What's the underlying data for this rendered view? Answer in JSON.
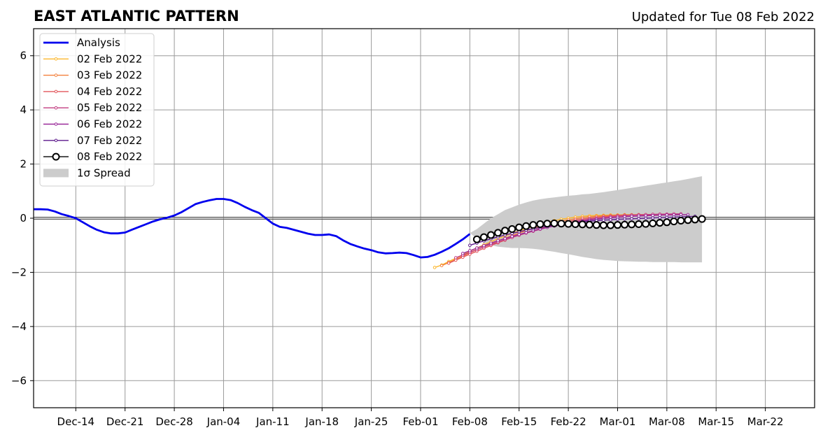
{
  "chart_data": {
    "type": "line",
    "title": "EAST ATLANTIC PATTERN",
    "subtitle": "Updated for Tue 08 Feb 2022",
    "xlabel": "",
    "ylabel": "",
    "x_range": [
      "2021-12-08",
      "2022-03-29"
    ],
    "ylim": [
      -7,
      7
    ],
    "grid": true,
    "legend_position": "top-left",
    "zero_line": true,
    "x_ticks": [
      {
        "date": "2021-12-14",
        "label": "Dec-14"
      },
      {
        "date": "2021-12-21",
        "label": "Dec-21"
      },
      {
        "date": "2021-12-28",
        "label": "Dec-28"
      },
      {
        "date": "2022-01-04",
        "label": "Jan-04"
      },
      {
        "date": "2022-01-11",
        "label": "Jan-11"
      },
      {
        "date": "2022-01-18",
        "label": "Jan-18"
      },
      {
        "date": "2022-01-25",
        "label": "Jan-25"
      },
      {
        "date": "2022-02-01",
        "label": "Feb-01"
      },
      {
        "date": "2022-02-08",
        "label": "Feb-08"
      },
      {
        "date": "2022-02-15",
        "label": "Feb-15"
      },
      {
        "date": "2022-02-22",
        "label": "Feb-22"
      },
      {
        "date": "2022-03-01",
        "label": "Mar-01"
      },
      {
        "date": "2022-03-08",
        "label": "Mar-08"
      },
      {
        "date": "2022-03-15",
        "label": "Mar-15"
      },
      {
        "date": "2022-03-22",
        "label": "Mar-22"
      }
    ],
    "y_ticks": [
      {
        "value": 6,
        "label": "6"
      },
      {
        "value": 4,
        "label": "4"
      },
      {
        "value": 2,
        "label": "2"
      },
      {
        "value": 0,
        "label": "0"
      },
      {
        "value": -2,
        "label": "−2"
      },
      {
        "value": -4,
        "label": "−4"
      },
      {
        "value": -6,
        "label": "−6"
      }
    ],
    "analysis": {
      "name": "Analysis",
      "color": "#0000ee",
      "start_date": "2021-12-08",
      "values": [
        0.33,
        0.33,
        0.32,
        0.25,
        0.15,
        0.08,
        0.0,
        -0.15,
        -0.3,
        -0.43,
        -0.52,
        -0.56,
        -0.56,
        -0.53,
        -0.42,
        -0.32,
        -0.22,
        -0.12,
        -0.04,
        0.02,
        0.1,
        0.22,
        0.37,
        0.52,
        0.6,
        0.66,
        0.71,
        0.71,
        0.67,
        0.56,
        0.42,
        0.3,
        0.2,
        0.0,
        -0.2,
        -0.32,
        -0.36,
        -0.43,
        -0.5,
        -0.57,
        -0.62,
        -0.62,
        -0.6,
        -0.66,
        -0.82,
        -0.95,
        -1.04,
        -1.12,
        -1.18,
        -1.26,
        -1.3,
        -1.29,
        -1.27,
        -1.29,
        -1.36,
        -1.45,
        -1.43,
        -1.35,
        -1.24,
        -1.11,
        -0.95,
        -0.78,
        -0.58
      ]
    },
    "forecasts": [
      {
        "name": "02 Feb 2022",
        "color": "#fcb72d",
        "start_date": "2022-02-03",
        "values": [
          -1.82,
          -1.73,
          -1.6,
          -1.48,
          -1.35,
          -1.22,
          -1.1,
          -0.98,
          -0.87,
          -0.76,
          -0.66,
          -0.56,
          -0.47,
          -0.38,
          -0.3,
          -0.22,
          -0.15,
          -0.09,
          -0.04,
          0.0,
          0.04,
          0.07,
          0.09,
          0.1,
          0.11,
          0.12,
          0.12,
          0.13,
          0.13,
          0.13,
          0.13,
          0.13,
          0.14
        ]
      },
      {
        "name": "03 Feb 2022",
        "color": "#f3803d",
        "start_date": "2022-02-04",
        "values": [
          -1.75,
          -1.64,
          -1.52,
          -1.4,
          -1.28,
          -1.16,
          -1.05,
          -0.94,
          -0.84,
          -0.74,
          -0.64,
          -0.55,
          -0.46,
          -0.38,
          -0.3,
          -0.23,
          -0.17,
          -0.11,
          -0.06,
          -0.02,
          0.02,
          0.05,
          0.07,
          0.09,
          0.1,
          0.11,
          0.12,
          0.12,
          0.13,
          0.13,
          0.13,
          0.14,
          0.14
        ]
      },
      {
        "name": "04 Feb 2022",
        "color": "#e2565b",
        "start_date": "2022-02-05",
        "values": [
          -1.66,
          -1.55,
          -1.44,
          -1.33,
          -1.22,
          -1.11,
          -1.01,
          -0.91,
          -0.81,
          -0.71,
          -0.62,
          -0.54,
          -0.46,
          -0.38,
          -0.31,
          -0.24,
          -0.18,
          -0.12,
          -0.07,
          -0.03,
          0.0,
          0.03,
          0.06,
          0.08,
          0.1,
          0.11,
          0.12,
          0.13,
          0.13,
          0.14,
          0.14,
          0.14,
          0.15
        ]
      },
      {
        "name": "05 Feb 2022",
        "color": "#c23c81",
        "start_date": "2022-02-06",
        "values": [
          -1.46,
          -1.36,
          -1.26,
          -1.16,
          -1.06,
          -0.97,
          -0.88,
          -0.79,
          -0.71,
          -0.63,
          -0.55,
          -0.48,
          -0.41,
          -0.34,
          -0.28,
          -0.22,
          -0.17,
          -0.12,
          -0.08,
          -0.04,
          -0.01,
          0.02,
          0.05,
          0.07,
          0.09,
          0.11,
          0.12,
          0.13,
          0.14,
          0.15,
          0.15,
          0.16,
          0.16
        ]
      },
      {
        "name": "06 Feb 2022",
        "color": "#9a2a99",
        "start_date": "2022-02-07",
        "values": [
          -1.3,
          -1.2,
          -1.1,
          -1.01,
          -0.92,
          -0.83,
          -0.75,
          -0.67,
          -0.6,
          -0.53,
          -0.46,
          -0.4,
          -0.34,
          -0.29,
          -0.24,
          -0.19,
          -0.15,
          -0.11,
          -0.07,
          -0.04,
          -0.01,
          0.01,
          0.03,
          0.05,
          0.07,
          0.08,
          0.09,
          0.1,
          0.11,
          0.12,
          0.12,
          0.13,
          0.13
        ]
      },
      {
        "name": "07 Feb 2022",
        "color": "#5d1a8c",
        "start_date": "2022-02-08",
        "values": [
          -1.0,
          -0.92,
          -0.84,
          -0.76,
          -0.69,
          -0.62,
          -0.56,
          -0.5,
          -0.44,
          -0.39,
          -0.34,
          -0.3,
          -0.26,
          -0.22,
          -0.19,
          -0.16,
          -0.13,
          -0.11,
          -0.09,
          -0.07,
          -0.06,
          -0.04,
          -0.03,
          -0.02,
          -0.01,
          0.0,
          0.01,
          0.02,
          0.03,
          0.04,
          0.05,
          0.06,
          0.07
        ]
      }
    ],
    "latest": {
      "name": "08 Feb 2022",
      "color": "#000000",
      "start_date": "2022-02-09",
      "values": [
        -0.78,
        -0.7,
        -0.62,
        -0.54,
        -0.46,
        -0.4,
        -0.34,
        -0.29,
        -0.25,
        -0.22,
        -0.2,
        -0.19,
        -0.2,
        -0.21,
        -0.22,
        -0.23,
        -0.24,
        -0.25,
        -0.26,
        -0.26,
        -0.25,
        -0.24,
        -0.23,
        -0.22,
        -0.21,
        -0.19,
        -0.17,
        -0.15,
        -0.12,
        -0.09,
        -0.07,
        -0.05,
        -0.03
      ]
    },
    "spread": {
      "name": "1σ Spread",
      "color": "#cccccc",
      "start_date": "2022-02-08",
      "upper": [
        -0.55,
        -0.4,
        -0.2,
        0.0,
        0.15,
        0.3,
        0.4,
        0.5,
        0.58,
        0.65,
        0.7,
        0.74,
        0.77,
        0.8,
        0.83,
        0.85,
        0.88,
        0.9,
        0.93,
        0.96,
        1.0,
        1.04,
        1.08,
        1.12,
        1.16,
        1.2,
        1.24,
        1.28,
        1.32,
        1.36,
        1.4,
        1.45,
        1.5,
        1.55
      ],
      "lower": [
        -0.55,
        -0.75,
        -0.9,
        -1.0,
        -1.05,
        -1.08,
        -1.1,
        -1.1,
        -1.11,
        -1.13,
        -1.16,
        -1.2,
        -1.24,
        -1.29,
        -1.33,
        -1.38,
        -1.43,
        -1.47,
        -1.51,
        -1.54,
        -1.56,
        -1.58,
        -1.59,
        -1.6,
        -1.61,
        -1.61,
        -1.62,
        -1.62,
        -1.62,
        -1.62,
        -1.63,
        -1.63,
        -1.63,
        -1.63
      ]
    }
  }
}
